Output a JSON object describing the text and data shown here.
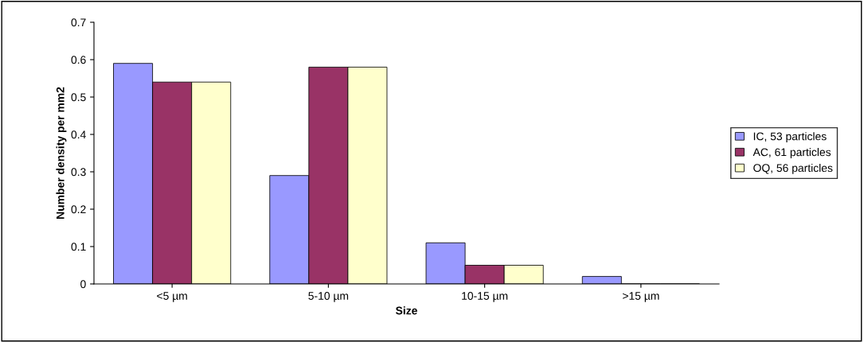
{
  "chart_data": {
    "type": "bar",
    "xlabel": "Size",
    "ylabel": "Number density per mm2",
    "categories": [
      "<5 µm",
      "5-10 µm",
      "10-15 µm",
      ">15 µm"
    ],
    "series": [
      {
        "name": "IC, 53 particles",
        "color": "#9999ff",
        "values": [
          0.59,
          0.29,
          0.11,
          0.02
        ]
      },
      {
        "name": "AC, 61 particles",
        "color": "#993366",
        "values": [
          0.54,
          0.58,
          0.05,
          0
        ]
      },
      {
        "name": "OQ, 56 particles",
        "color": "#ffffcc",
        "values": [
          0.54,
          0.58,
          0.05,
          0
        ]
      }
    ],
    "ylim": [
      0,
      0.7
    ],
    "yticks": [
      0,
      0.1,
      0.2,
      0.3,
      0.4,
      0.5,
      0.6,
      0.7
    ],
    "grid": false,
    "legend": "right"
  }
}
